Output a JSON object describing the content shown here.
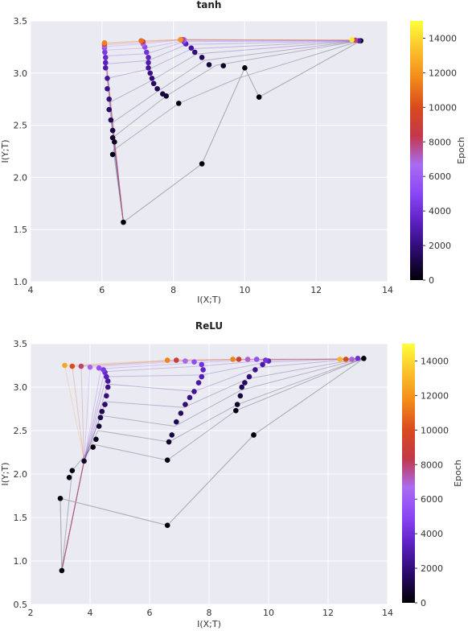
{
  "colors": {
    "plot_bg": "#eaeaf2",
    "grid": "#ffffff",
    "line": "#b0b0b0",
    "colormap": "gnuplot",
    "colormap_stops": [
      "#000004",
      "#2a0a6a",
      "#5b1fbf",
      "#8a46f5",
      "#a96cf2",
      "#c2384a",
      "#d94a1e",
      "#f28a1a",
      "#fbc02d",
      "#fcff3a"
    ]
  },
  "chart_data": [
    {
      "type": "scatter",
      "title": "tanh",
      "xlabel": "I(X;T)",
      "ylabel": "I(Y;T)",
      "xlim": [
        4,
        14
      ],
      "ylim": [
        1.0,
        3.5
      ],
      "xticks": [
        "4",
        "6",
        "8",
        "10",
        "12",
        "14"
      ],
      "yticks": [
        "1.0",
        "1.5",
        "2.0",
        "2.5",
        "3.0",
        "3.5"
      ],
      "colorbar": {
        "label": "Epoch",
        "min": 0,
        "max": 15000,
        "ticks": [
          "0",
          "2000",
          "4000",
          "6000",
          "8000",
          "10000",
          "12000",
          "14000"
        ]
      },
      "series": [
        {
          "x": [
            13.25,
            13.2,
            13.1,
            13.0
          ],
          "y": [
            3.31,
            3.31,
            3.315,
            3.32
          ],
          "epochs": [
            0,
            3000,
            8000,
            14500
          ]
        },
        {
          "x": [
            10.4,
            9.4,
            9.0,
            8.8,
            8.6,
            8.5,
            8.35,
            8.3,
            8.3,
            8.3,
            8.25,
            8.2,
            8.2
          ],
          "y": [
            2.77,
            3.07,
            3.08,
            3.15,
            3.2,
            3.24,
            3.28,
            3.3,
            3.31,
            3.32,
            3.32,
            3.32,
            3.32
          ],
          "epochs": [
            0,
            500,
            900,
            1400,
            2000,
            2600,
            3300,
            4000,
            5000,
            6500,
            8000,
            10000,
            12000
          ]
        },
        {
          "x": [
            10.0,
            8.15,
            7.8,
            7.7,
            7.55,
            7.45,
            7.4,
            7.35,
            7.3,
            7.3,
            7.3,
            7.25,
            7.2,
            7.15,
            7.15,
            7.1
          ],
          "y": [
            3.05,
            2.71,
            2.78,
            2.8,
            2.85,
            2.9,
            2.95,
            3.0,
            3.05,
            3.1,
            3.15,
            3.2,
            3.25,
            3.28,
            3.3,
            3.31
          ],
          "epochs": [
            0,
            300,
            700,
            1000,
            1300,
            1600,
            1900,
            2200,
            2600,
            3000,
            3500,
            4200,
            5200,
            6500,
            8500,
            11000
          ]
        },
        {
          "x": [
            8.8,
            6.3,
            6.35,
            6.3,
            6.3,
            6.25,
            6.2,
            6.2,
            6.15,
            6.15,
            6.1,
            6.1,
            6.1,
            6.08,
            6.07,
            6.07,
            6.07,
            6.07
          ],
          "y": [
            2.13,
            2.22,
            2.34,
            2.38,
            2.45,
            2.55,
            2.65,
            2.75,
            2.85,
            2.95,
            3.05,
            3.1,
            3.15,
            3.2,
            3.24,
            3.26,
            3.28,
            3.29
          ],
          "epochs": [
            0,
            200,
            500,
            700,
            1000,
            1300,
            1600,
            1900,
            2200,
            2500,
            2900,
            3300,
            3800,
            4500,
            5500,
            7000,
            9000,
            11500
          ]
        },
        {
          "x": [
            6.6
          ],
          "y": [
            1.57
          ],
          "epochs": [
            0
          ]
        }
      ]
    },
    {
      "type": "scatter",
      "title": "ReLU",
      "xlabel": "I(X;T)",
      "ylabel": "I(Y;T)",
      "xlim": [
        2,
        14
      ],
      "ylim": [
        0.5,
        3.5
      ],
      "xticks": [
        "2",
        "4",
        "6",
        "8",
        "10",
        "12",
        "14"
      ],
      "yticks": [
        "0.5",
        "1.0",
        "1.5",
        "2.0",
        "2.5",
        "3.0",
        "3.5"
      ],
      "colorbar": {
        "label": "Epoch",
        "min": 0,
        "max": 15000,
        "ticks": [
          "0",
          "2000",
          "4000",
          "6000",
          "8000",
          "10000",
          "12000",
          "14000"
        ]
      },
      "series": [
        {
          "x": [
            13.2,
            13.0,
            12.8,
            12.6,
            12.4
          ],
          "y": [
            3.33,
            3.33,
            3.32,
            3.32,
            3.32
          ],
          "epochs": [
            0,
            4000,
            7000,
            10000,
            13000
          ]
        },
        {
          "x": [
            9.5,
            8.9,
            8.95,
            9.05,
            9.1,
            9.2,
            9.35,
            9.55,
            9.8,
            10.0,
            9.9,
            9.6,
            9.3,
            9.0,
            8.8
          ],
          "y": [
            2.45,
            2.73,
            2.8,
            2.9,
            3.0,
            3.05,
            3.12,
            3.2,
            3.26,
            3.3,
            3.31,
            3.32,
            3.32,
            3.32,
            3.32
          ],
          "epochs": [
            0,
            300,
            700,
            1000,
            1300,
            1600,
            1900,
            2300,
            2800,
            3400,
            4200,
            5500,
            7000,
            9000,
            11500
          ]
        },
        {
          "x": [
            9.5,
            6.6,
            6.65,
            6.75,
            6.9,
            7.05,
            7.2,
            7.35,
            7.5,
            7.65,
            7.75,
            7.8,
            7.75,
            7.5,
            7.2,
            6.9,
            6.6
          ],
          "y": [
            2.45,
            2.16,
            2.37,
            2.45,
            2.6,
            2.7,
            2.8,
            2.88,
            2.95,
            3.05,
            3.12,
            3.2,
            3.26,
            3.29,
            3.3,
            3.31,
            3.31
          ],
          "epochs": [
            0,
            300,
            700,
            1000,
            1300,
            1600,
            1900,
            2200,
            2500,
            2800,
            3100,
            3500,
            4200,
            5300,
            6800,
            8800,
            11500
          ]
        },
        {
          "x": [
            6.6,
            4.1,
            4.2,
            4.3,
            4.35,
            4.4,
            4.5,
            4.55,
            4.6,
            4.6,
            4.55,
            4.5,
            4.45,
            4.3,
            4.0,
            3.7,
            3.4,
            3.15
          ],
          "y": [
            1.41,
            2.31,
            2.4,
            2.55,
            2.65,
            2.72,
            2.8,
            2.9,
            3.0,
            3.07,
            3.12,
            3.17,
            3.2,
            3.22,
            3.23,
            3.24,
            3.24,
            3.25
          ],
          "epochs": [
            0,
            200,
            500,
            800,
            1100,
            1400,
            1700,
            2000,
            2300,
            2700,
            3200,
            3800,
            4500,
            5400,
            6500,
            8000,
            10000,
            12500
          ]
        },
        {
          "x": [
            3.0,
            3.3,
            3.4,
            3.8
          ],
          "y": [
            1.72,
            1.96,
            2.04,
            2.15
          ],
          "epochs": [
            0,
            150,
            300,
            600
          ]
        },
        {
          "x": [
            3.05
          ],
          "y": [
            0.89
          ],
          "epochs": [
            0
          ]
        }
      ]
    }
  ]
}
